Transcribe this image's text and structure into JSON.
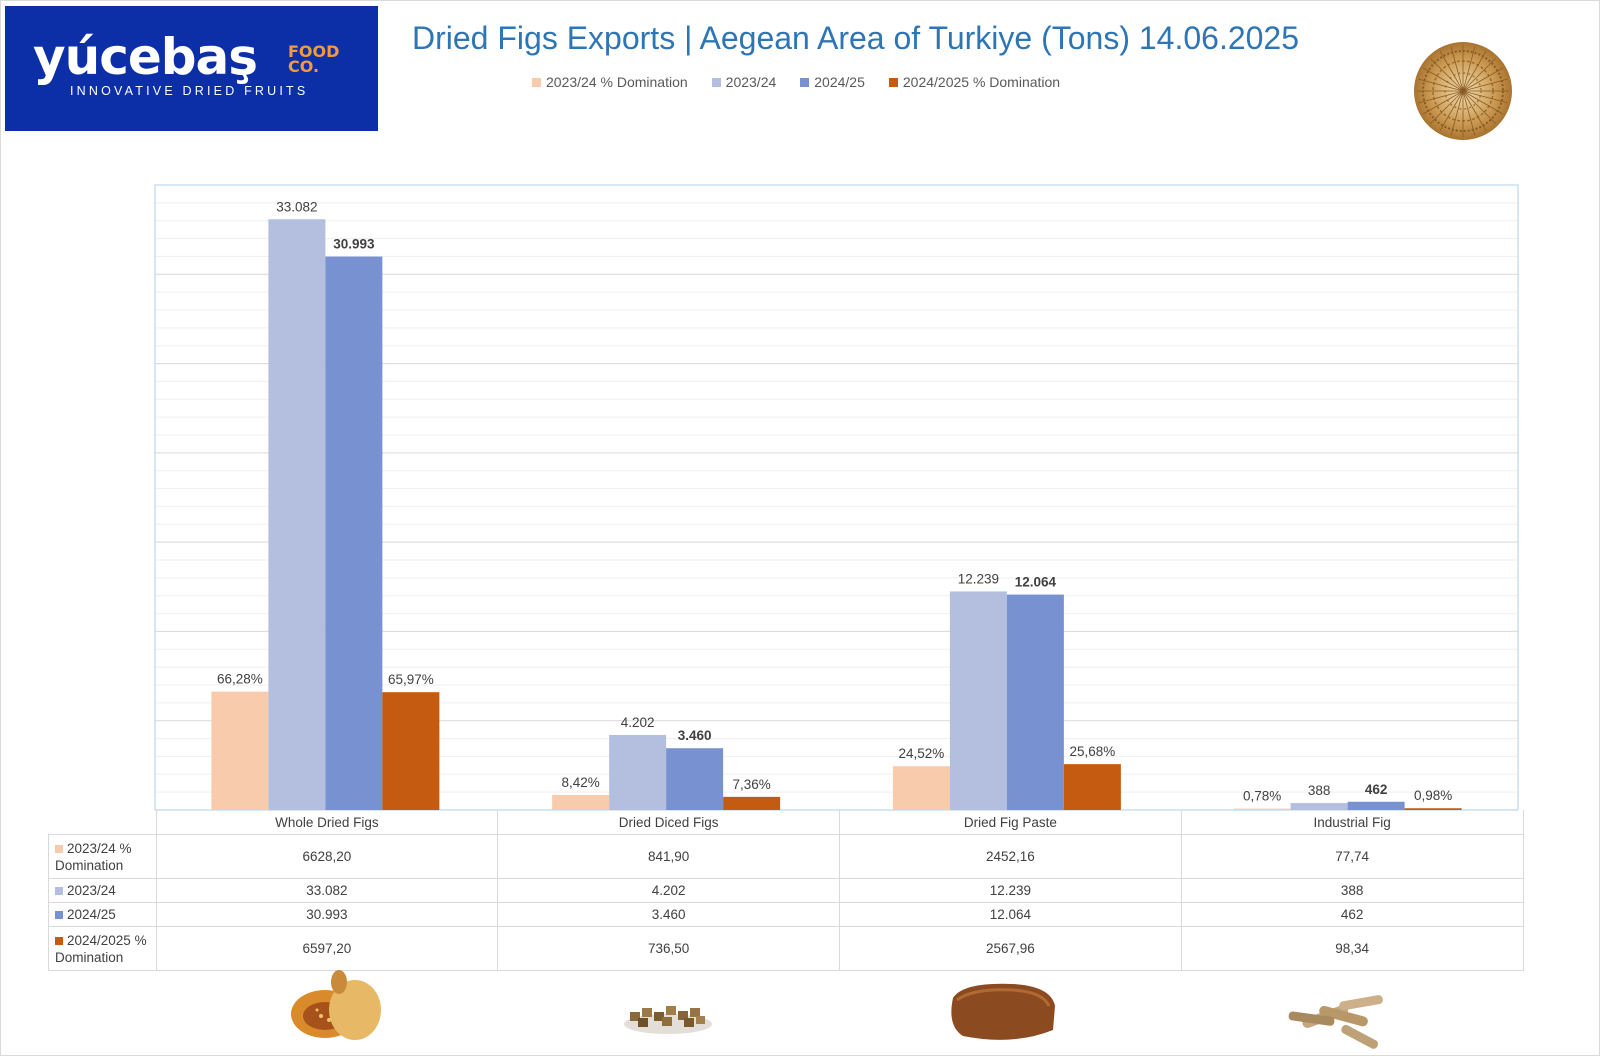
{
  "logo": {
    "brand": "yúcebaş",
    "brand_suffix_line1": "FOOD",
    "brand_suffix_line2": "CO.",
    "tagline": "INNOVATIVE DRIED FRUITS"
  },
  "colors": {
    "logo_bg": "#0c2fa8",
    "title": "#2e75b6",
    "series_2023_dom": "#f8cbad",
    "series_2023": "#b4bfe0",
    "series_2024": "#7891d0",
    "series_2024_dom": "#c55a11"
  },
  "chart_data": {
    "type": "bar",
    "title": "Dried Figs Exports | Aegean Area of Turkiye (Tons) 14.06.2025",
    "categories": [
      "Whole Dried Figs",
      "Dried Diced Figs",
      "Dried Fig Paste",
      "Industrial Fig"
    ],
    "ylim": [
      0,
      35000
    ],
    "grid": true,
    "legend_position": "top",
    "series": [
      {
        "name": "2023/24  % Domination",
        "values": [
          6628.2,
          841.9,
          2452.16,
          77.74
        ],
        "bar_labels": [
          "66,28%",
          "8,42%",
          "24,52%",
          "0,78%"
        ],
        "table_values": [
          "6628,20",
          "841,90",
          "2452,16",
          "77,74"
        ],
        "color": "#f8cbad",
        "bold_labels": false
      },
      {
        "name": "2023/24",
        "values": [
          33082,
          4202,
          12239,
          388
        ],
        "bar_labels": [
          "33.082",
          "4.202",
          "12.239",
          "388"
        ],
        "table_values": [
          "33.082",
          "4.202",
          "12.239",
          "388"
        ],
        "color": "#b4bfe0",
        "bold_labels": false
      },
      {
        "name": "2024/25",
        "values": [
          30993,
          3460,
          12064,
          462
        ],
        "bar_labels": [
          "30.993",
          "3.460",
          "12.064",
          "462"
        ],
        "table_values": [
          "30.993",
          "3.460",
          "12.064",
          "462"
        ],
        "color": "#7891d0",
        "bold_labels": true
      },
      {
        "name": "2024/2025 % Domination",
        "values": [
          6597.2,
          736.5,
          2567.96,
          98.34
        ],
        "bar_labels": [
          "65,97%",
          "7,36%",
          "25,68%",
          "0,98%"
        ],
        "table_values": [
          "6597,20",
          "736,50",
          "2567,96",
          "98,34"
        ],
        "color": "#c55a11",
        "bold_labels": false
      }
    ],
    "table_row_labels": [
      "2023/24  %\nDomination",
      "2023/24",
      "2024/25",
      "2024/2025 %\nDomination"
    ]
  },
  "images": [
    "whole-dried-fig",
    "diced-fig",
    "fig-paste-block",
    "industrial-fig"
  ]
}
